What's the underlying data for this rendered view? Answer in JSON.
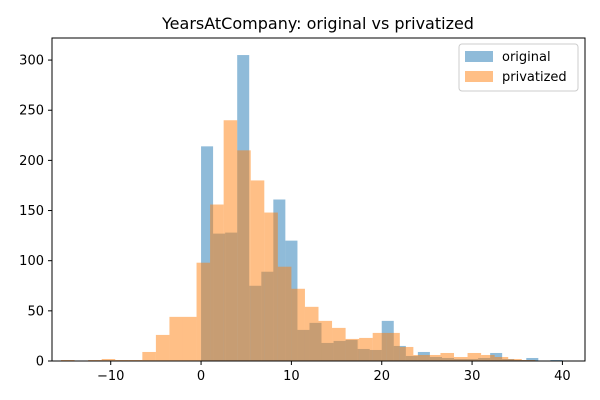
{
  "chart_data": {
    "type": "histogram",
    "title": "YearsAtCompany: original vs privatized",
    "xlabel": "",
    "ylabel": "",
    "xlim": [
      -16.5,
      42.5
    ],
    "ylim": [
      0,
      322
    ],
    "x_ticks": [
      -10,
      0,
      10,
      20,
      30,
      40
    ],
    "y_ticks": [
      0,
      50,
      100,
      150,
      200,
      250,
      300
    ],
    "grid": false,
    "legend_position": "top-right",
    "series": [
      {
        "name": "original",
        "color": "#1f77b4",
        "opacity": 0.5,
        "bins": [
          [
            0,
            1.33,
            214
          ],
          [
            1.33,
            2.67,
            127
          ],
          [
            2.67,
            4,
            128
          ],
          [
            4,
            5.33,
            305
          ],
          [
            5.33,
            6.67,
            75
          ],
          [
            6.67,
            8,
            89
          ],
          [
            8,
            9.33,
            161
          ],
          [
            9.33,
            10.67,
            120
          ],
          [
            10.67,
            12,
            31
          ],
          [
            12,
            13.33,
            38
          ],
          [
            13.33,
            14.67,
            18
          ],
          [
            14.67,
            16,
            20
          ],
          [
            16,
            17.33,
            21
          ],
          [
            17.33,
            18.67,
            12
          ],
          [
            18.67,
            20,
            11
          ],
          [
            20,
            21.33,
            40
          ],
          [
            21.33,
            22.67,
            15
          ],
          [
            22.67,
            24,
            5
          ],
          [
            24,
            25.33,
            9
          ],
          [
            25.33,
            26.67,
            4
          ],
          [
            26.67,
            28,
            3
          ],
          [
            28,
            29.33,
            2
          ],
          [
            29.33,
            30.67,
            2
          ],
          [
            30.67,
            32,
            3
          ],
          [
            32,
            33.33,
            8
          ],
          [
            33.33,
            34.67,
            2
          ],
          [
            34.67,
            36,
            1
          ],
          [
            36,
            37.33,
            3
          ],
          [
            37.33,
            38.67,
            0
          ],
          [
            38.67,
            40,
            1
          ]
        ]
      },
      {
        "name": "privatized",
        "color": "#ff7f0e",
        "opacity": 0.5,
        "bins": [
          [
            -15.5,
            -14,
            1
          ],
          [
            -14,
            -12.5,
            0
          ],
          [
            -12.5,
            -11,
            1
          ],
          [
            -11,
            -9.5,
            2
          ],
          [
            -9.5,
            -8,
            1
          ],
          [
            -8,
            -6.5,
            1
          ],
          [
            -6.5,
            -5,
            9
          ],
          [
            -5,
            -3.5,
            26
          ],
          [
            -3.5,
            -2,
            44
          ],
          [
            -2,
            -0.5,
            44
          ],
          [
            -0.5,
            1,
            98
          ],
          [
            1,
            2.5,
            156
          ],
          [
            2.5,
            4,
            240
          ],
          [
            4,
            5.5,
            210
          ],
          [
            5.5,
            7,
            180
          ],
          [
            7,
            8.5,
            148
          ],
          [
            8.5,
            10,
            94
          ],
          [
            10,
            11.5,
            72
          ],
          [
            11.5,
            13,
            54
          ],
          [
            13,
            14.5,
            40
          ],
          [
            14.5,
            16,
            33
          ],
          [
            16,
            17.5,
            22
          ],
          [
            17.5,
            19,
            23
          ],
          [
            19,
            20.5,
            28
          ],
          [
            20.5,
            22,
            28
          ],
          [
            22,
            23.5,
            14
          ],
          [
            23.5,
            25,
            6
          ],
          [
            25,
            26.5,
            6
          ],
          [
            26.5,
            28,
            8
          ],
          [
            28,
            29.5,
            4
          ],
          [
            29.5,
            31,
            8
          ],
          [
            31,
            32.5,
            6
          ],
          [
            32.5,
            34,
            4
          ],
          [
            34,
            35.5,
            2
          ],
          [
            35.5,
            37,
            1
          ],
          [
            37,
            38.5,
            0
          ],
          [
            38.5,
            40,
            0
          ]
        ]
      }
    ]
  }
}
